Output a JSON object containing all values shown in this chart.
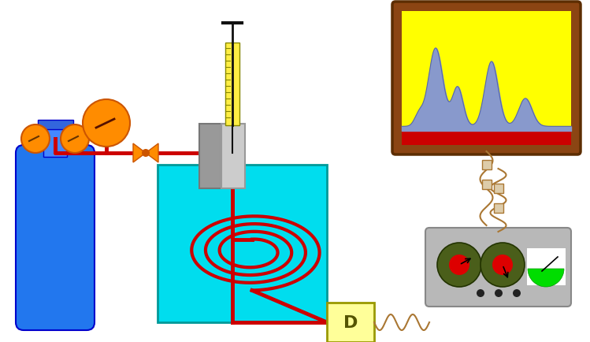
{
  "bg": "#ffffff",
  "pipe": "#cc0000",
  "orange": "#ff8c00",
  "orange_edge": "#cc5500",
  "blue_cyl": "#2277ee",
  "blue_cyl_edge": "#0000cc",
  "cyan_oven": "#00ddee",
  "gray_inj": "#aaaaaa",
  "gray_inj2": "#cccccc",
  "yellow_syr": "#ffee44",
  "chart_brown": "#8B4513",
  "chart_yellow": "#ffff00",
  "chart_blue": "#8899cc",
  "chart_red": "#cc0000",
  "ctrl_gray": "#b8b8b8",
  "knob_olive": "#4a5e1a",
  "knob_red": "#dd0000",
  "green": "#00dd00",
  "wire_brown": "#aa7733",
  "wire_black": "#111111",
  "det_yellow": "#ffff99",
  "det_edge": "#999900"
}
